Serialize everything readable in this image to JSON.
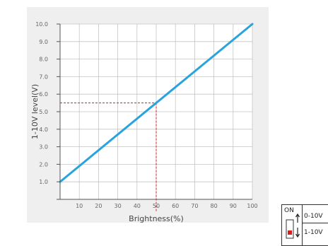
{
  "chart_data": {
    "type": "line",
    "xlabel": "Brightness(%)",
    "ylabel": "1-10V level(V)",
    "xlim": [
      0,
      100
    ],
    "ylim": [
      0,
      10
    ],
    "x_ticks": [
      "10",
      "20",
      "30",
      "40",
      "50",
      "60",
      "70",
      "80",
      "90",
      "100"
    ],
    "y_ticks": [
      "1.0",
      "2.0",
      "3.0",
      "4.0",
      "5.0",
      "6.0",
      "7.0",
      "8.0",
      "9.0",
      "10.0"
    ],
    "grid": true,
    "series": [
      {
        "x": [
          0,
          100
        ],
        "y": [
          1.0,
          10.0
        ],
        "color": "#2aa3dd"
      }
    ],
    "reference_point": {
      "x": 50,
      "y": 5.5,
      "color": "#cc2222"
    }
  },
  "switch_panel": {
    "on_label": "ON",
    "option_up": "0-10V",
    "option_down": "1-10V",
    "indicator_color": "#d81e1e"
  }
}
